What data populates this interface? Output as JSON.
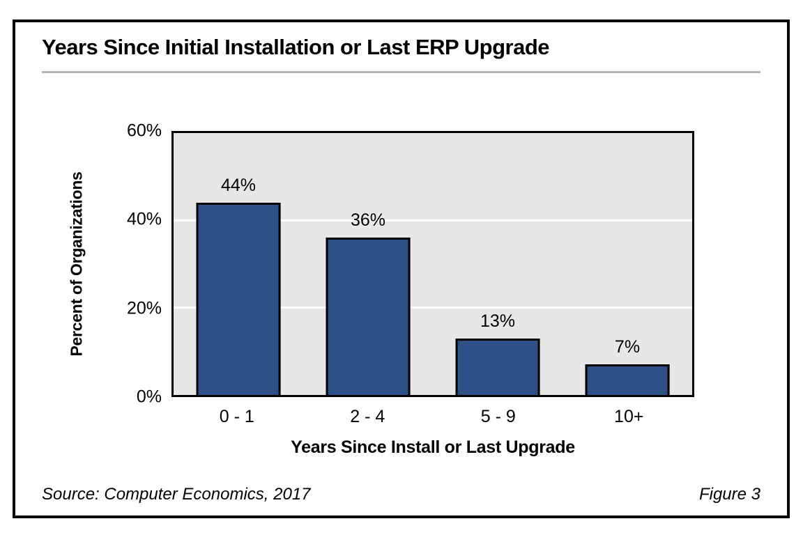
{
  "figure": {
    "title": "Years Since Initial Installation or Last ERP Upgrade",
    "source": "Source: Computer Economics, 2017",
    "figure_label": "Figure 3"
  },
  "chart_data": {
    "type": "bar",
    "title": "Years Since Initial Installation or Last ERP Upgrade",
    "categories": [
      "0 - 1",
      "2 - 4",
      "5 - 9",
      "10+"
    ],
    "values": [
      44,
      36,
      13,
      7
    ],
    "value_labels": [
      "44%",
      "36%",
      "13%",
      "7%"
    ],
    "xlabel": "Years Since Install or Last Upgrade",
    "ylabel": "Percent of Organizations",
    "ylim": [
      0,
      60
    ],
    "yticks": [
      0,
      20,
      40,
      60
    ],
    "ytick_labels": [
      "0%",
      "20%",
      "40%",
      "60%"
    ],
    "grid": true,
    "gridline_values": [
      20,
      40
    ],
    "legend": "none",
    "colors": {
      "bar_fill": "#2d5186",
      "bar_border": "#000000",
      "plot_background": "#e7e7e5",
      "gridline": "#ffffff",
      "frame_border": "#000000",
      "title_rule": "#b3b3b3"
    }
  }
}
